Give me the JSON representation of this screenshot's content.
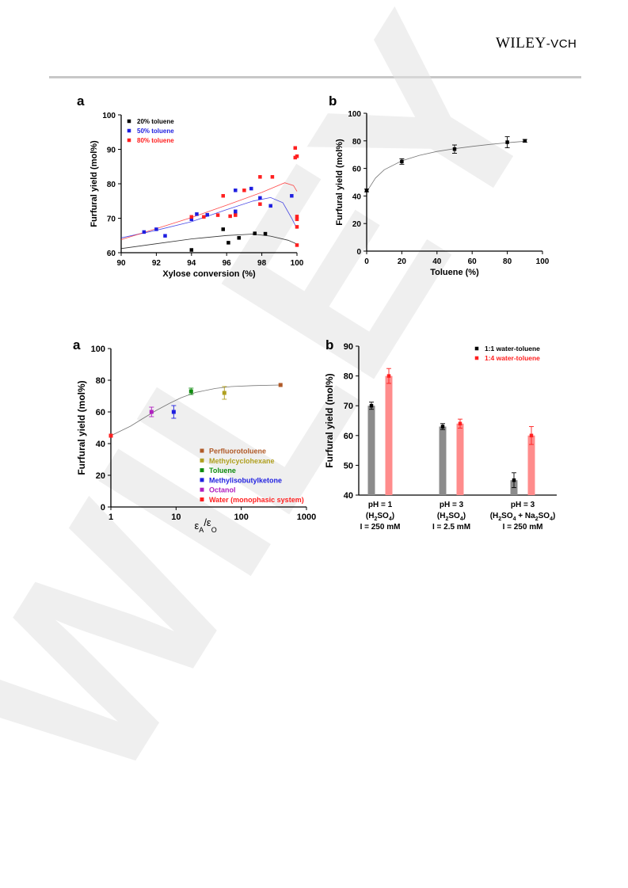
{
  "header": {
    "brand_main": "WILEY",
    "brand_sep": "-",
    "brand_sub": "VCH"
  },
  "watermark": {
    "text": "WILEY"
  },
  "panel_letters": [
    "a",
    "b",
    "a",
    "b"
  ],
  "chart_data": [
    {
      "id": "fig1a",
      "type": "scatter",
      "xlabel": "Xylose conversion (%)",
      "ylabel": "Furfural yield (mol%)",
      "xlim": [
        90,
        100
      ],
      "ylim": [
        60,
        100
      ],
      "xticks": [
        90,
        92,
        94,
        96,
        98,
        100
      ],
      "yticks": [
        60,
        70,
        80,
        90,
        100
      ],
      "legend": "top-left",
      "series": [
        {
          "name": "20% toluene",
          "color": "#000000",
          "points": [
            [
              94.0,
              60.8
            ],
            [
              95.8,
              66.8
            ],
            [
              96.1,
              62.9
            ],
            [
              96.7,
              64.3
            ],
            [
              97.6,
              65.6
            ],
            [
              98.2,
              65.5
            ]
          ],
          "trend": [
            [
              90,
              61.2
            ],
            [
              92,
              62.6
            ],
            [
              94,
              64.0
            ],
            [
              96,
              65.0
            ],
            [
              97.5,
              65.4
            ],
            [
              98.5,
              64.8
            ],
            [
              99.5,
              63.6
            ],
            [
              100,
              62.5
            ]
          ]
        },
        {
          "name": "50% toluene",
          "color": "#1f1fe0",
          "points": [
            [
              91.3,
              66.0
            ],
            [
              92.0,
              66.8
            ],
            [
              92.5,
              64.9
            ],
            [
              94.0,
              69.7
            ],
            [
              94.3,
              71.2
            ],
            [
              94.9,
              71.0
            ],
            [
              96.5,
              71.2
            ],
            [
              96.5,
              72.0
            ],
            [
              96.5,
              78.1
            ],
            [
              97.4,
              78.6
            ],
            [
              97.9,
              75.9
            ],
            [
              98.5,
              73.6
            ],
            [
              99.7,
              76.5
            ]
          ],
          "trend": [
            [
              90,
              64.3
            ],
            [
              92,
              66.5
            ],
            [
              94,
              69.0
            ],
            [
              96,
              72.5
            ],
            [
              97.5,
              75.0
            ],
            [
              98.5,
              76.0
            ],
            [
              99.2,
              74.5
            ],
            [
              99.7,
              70.0
            ],
            [
              100,
              67.0
            ]
          ]
        },
        {
          "name": "80% toluene",
          "color": "#ff2020",
          "points": [
            [
              94.0,
              70.4
            ],
            [
              94.7,
              70.4
            ],
            [
              95.5,
              70.9
            ],
            [
              95.8,
              76.5
            ],
            [
              96.2,
              70.6
            ],
            [
              96.5,
              70.9
            ],
            [
              97.0,
              78.1
            ],
            [
              97.9,
              74.1
            ],
            [
              97.9,
              82.0
            ],
            [
              98.6,
              82.0
            ],
            [
              99.9,
              90.4
            ],
            [
              99.9,
              87.6
            ],
            [
              100.0,
              88.0
            ],
            [
              100.0,
              70.5
            ],
            [
              100.0,
              69.7
            ],
            [
              100.0,
              67.5
            ],
            [
              100.0,
              62.2
            ]
          ],
          "trend": [
            [
              90,
              63.8
            ],
            [
              92,
              67.0
            ],
            [
              94,
              70.2
            ],
            [
              96,
              73.8
            ],
            [
              98,
              77.5
            ],
            [
              99.3,
              80.3
            ],
            [
              99.8,
              79.5
            ],
            [
              100,
              77.8
            ]
          ]
        }
      ]
    },
    {
      "id": "fig1b",
      "type": "scatter",
      "xlabel": "Toluene (%)",
      "ylabel": "Furfural yield (mol%)",
      "xlim": [
        0,
        100
      ],
      "ylim": [
        0,
        100
      ],
      "xticks": [
        0,
        20,
        40,
        60,
        80,
        100
      ],
      "yticks": [
        0,
        20,
        40,
        60,
        80,
        100
      ],
      "series": [
        {
          "name": "",
          "color": "#000000",
          "points": [
            [
              0,
              44,
              1
            ],
            [
              20,
              65,
              2
            ],
            [
              50,
              74,
              3
            ],
            [
              80,
              79,
              4
            ],
            [
              90,
              80,
              1
            ]
          ],
          "trend": [
            [
              0,
              43
            ],
            [
              5,
              53
            ],
            [
              10,
              59
            ],
            [
              20,
              65.5
            ],
            [
              30,
              69.5
            ],
            [
              40,
              72.3
            ],
            [
              50,
              74.3
            ],
            [
              60,
              76
            ],
            [
              70,
              77.4
            ],
            [
              80,
              78.6
            ],
            [
              90,
              79.7
            ]
          ]
        }
      ]
    },
    {
      "id": "fig2a",
      "type": "scatter",
      "xscale": "log",
      "xlabel_main": "ε",
      "xlabel_sub1": "A",
      "xlabel_slash": "/ε",
      "xlabel_sub2": "O",
      "ylabel": "Furfural yield (mol%)",
      "xlim": [
        1,
        1000
      ],
      "ylim": [
        0,
        100
      ],
      "xticks": [
        1,
        10,
        100,
        1000
      ],
      "yticks": [
        0,
        20,
        40,
        60,
        80,
        100
      ],
      "legend": "lower-right",
      "series": [
        {
          "name": "Perfluorotoluene",
          "color": "#b05a28",
          "points": [
            [
              400,
              77,
              0
            ]
          ]
        },
        {
          "name": "Methylcyclohexane",
          "color": "#b0a020",
          "points": [
            [
              55,
              72,
              4
            ]
          ]
        },
        {
          "name": "Toluene",
          "color": "#108c10",
          "points": [
            [
              17,
              73,
              2
            ]
          ]
        },
        {
          "name": "Methylisobutylketone",
          "color": "#1f1fe0",
          "points": [
            [
              9.2,
              60,
              4
            ]
          ]
        },
        {
          "name": "Octanol",
          "color": "#b020c0",
          "points": [
            [
              4.2,
              60,
              3
            ]
          ]
        },
        {
          "name": "Water (monophasic system)",
          "color": "#ff2020",
          "points": [
            [
              1,
              45,
              0
            ]
          ]
        }
      ],
      "trend": [
        [
          1,
          45
        ],
        [
          2,
          51
        ],
        [
          3,
          55.5
        ],
        [
          5,
          61
        ],
        [
          8,
          65.5
        ],
        [
          12,
          69
        ],
        [
          20,
          72.3
        ],
        [
          40,
          74.8
        ],
        [
          70,
          76
        ],
        [
          150,
          76.6
        ],
        [
          400,
          77
        ]
      ]
    },
    {
      "id": "fig2b",
      "type": "bar",
      "ylabel": "Furfural yield (mol%)",
      "ylim": [
        40,
        90
      ],
      "yticks": [
        40,
        50,
        60,
        70,
        80,
        90
      ],
      "legend": "top-right",
      "categories": [
        {
          "line1": "pH = 1",
          "line2_pre": "(H",
          "line2_s1": "2",
          "line2_mid": "SO",
          "line2_s2": "4",
          "line2_post": ")",
          "line3": "I = 250 mM"
        },
        {
          "line1": "pH = 3",
          "line2_pre": "(H",
          "line2_s1": "2",
          "line2_mid": "SO",
          "line2_s2": "4",
          "line2_post": ")",
          "line3": "I = 2.5 mM"
        },
        {
          "line1": "pH = 3",
          "line2_pre": "(H",
          "line2_s1": "2",
          "line2_mid": "SO",
          "line2_s2": "4",
          "line2_post": " + Na",
          "line2_s3": "2",
          "line2_mid2": "SO",
          "line2_s4": "4",
          "line2_end": ")",
          "line3": "I = 250 mM"
        }
      ],
      "series": [
        {
          "name": "1:1 water-toluene",
          "legend_color": "#000000",
          "bar_color": "#8c8c8c",
          "point_color": "#000000",
          "values": [
            70,
            63,
            45
          ],
          "errors": [
            1.2,
            1.0,
            2.5
          ]
        },
        {
          "name": "1:4 water-toluene",
          "legend_color": "#ff2020",
          "bar_color": "#ff8c8c",
          "point_color": "#ff2020",
          "values": [
            80,
            64,
            60
          ],
          "errors": [
            2.5,
            1.5,
            3.0
          ]
        }
      ]
    }
  ]
}
